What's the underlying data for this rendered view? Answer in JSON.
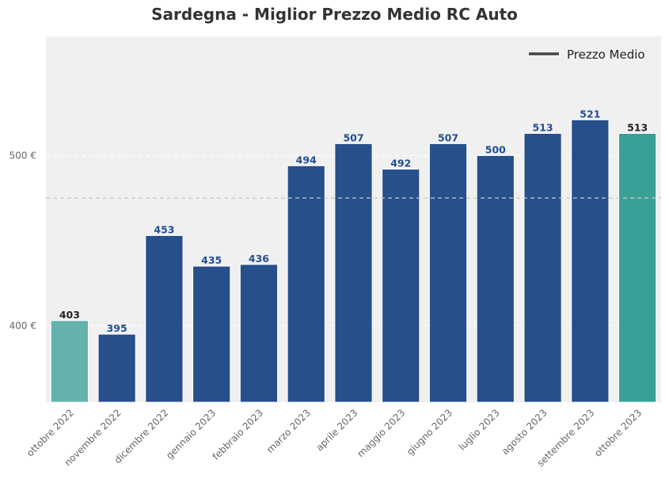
{
  "title": "Sardegna - Miglior Prezzo Medio RC Auto",
  "chart_data": {
    "type": "bar",
    "title": "Sardegna - Miglior Prezzo Medio RC Auto",
    "categories": [
      "ottobre 2022",
      "novembre 2022",
      "dicembre 2022",
      "gennaio 2023",
      "febbraio 2023",
      "marzo 2023",
      "aprile 2023",
      "maggio 2023",
      "giugno 2023",
      "luglio 2023",
      "agosto 2023",
      "settembre 2023",
      "ottobre 2023"
    ],
    "values": [
      403,
      395,
      453,
      435,
      436,
      494,
      507,
      492,
      507,
      500,
      513,
      521,
      513
    ],
    "bar_colors": [
      "#64b2ac",
      "#264f8c",
      "#264f8c",
      "#264f8c",
      "#264f8c",
      "#264f8c",
      "#264f8c",
      "#264f8c",
      "#264f8c",
      "#264f8c",
      "#264f8c",
      "#264f8c",
      "#3aa096"
    ],
    "label_colors": [
      "#222222",
      "#1f4f96",
      "#1f4f96",
      "#1f4f96",
      "#1f4f96",
      "#1f4f96",
      "#1f4f96",
      "#1f4f96",
      "#1f4f96",
      "#1f4f96",
      "#1f4f96",
      "#1f4f96",
      "#222222"
    ],
    "ylim": [
      355,
      570
    ],
    "yticks": [
      400,
      500
    ],
    "ytick_labels": [
      "400 €",
      "500 €"
    ],
    "average_line": 475,
    "legend": {
      "label": "Prezzo Medio",
      "position": "top-right",
      "color": "#444444"
    },
    "grid": true,
    "background": "#f0f0f0",
    "xlabel": "",
    "ylabel": ""
  }
}
